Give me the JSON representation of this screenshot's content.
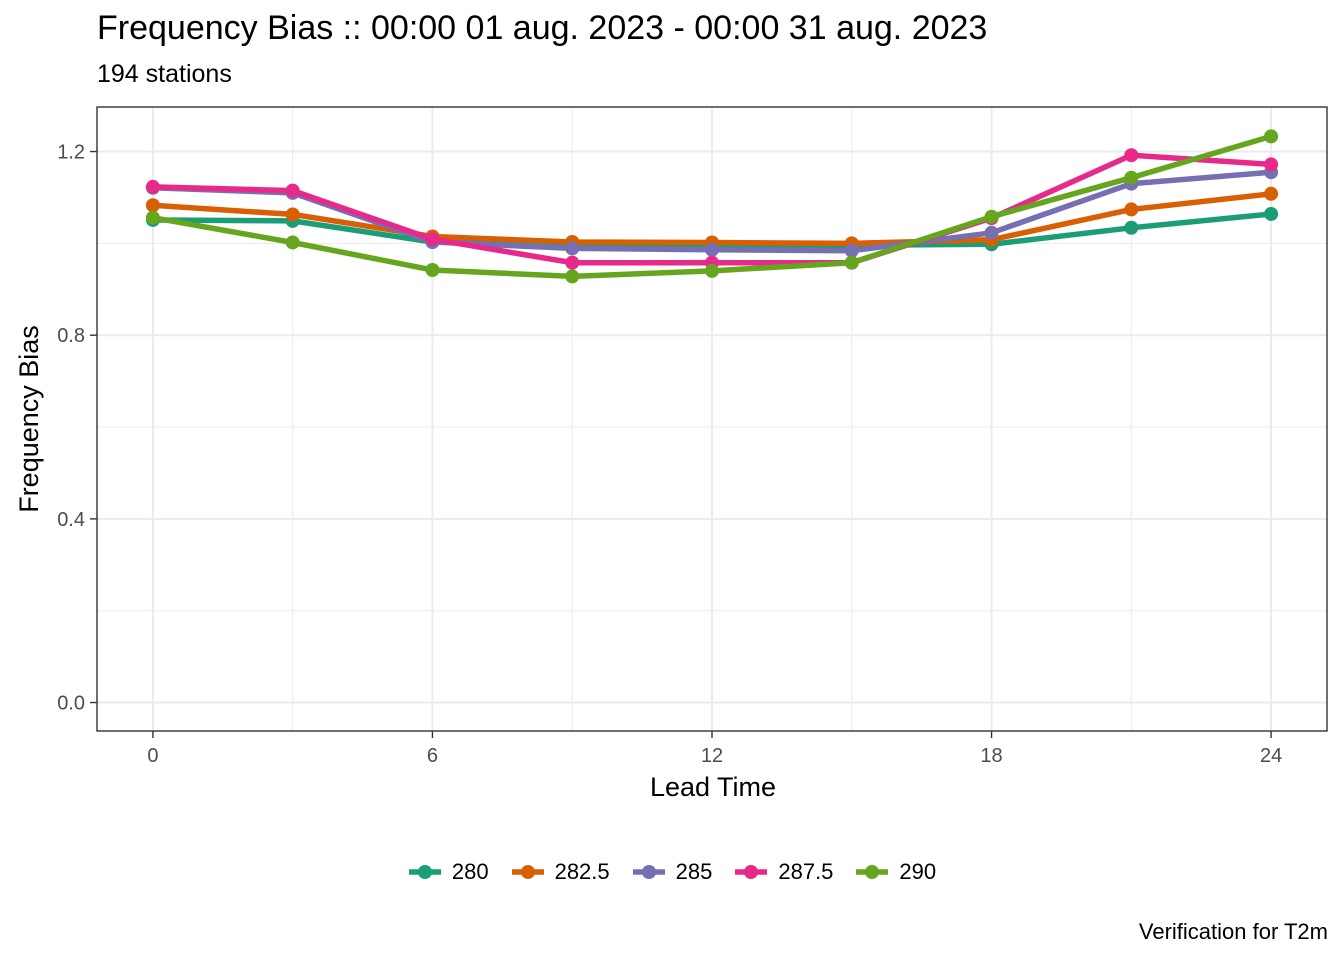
{
  "chart_data": {
    "type": "line",
    "title": "Frequency Bias :: 00:00 01 aug. 2023 - 00:00 31 aug. 2023",
    "subtitle": "194 stations",
    "xlabel": "Lead Time",
    "ylabel": "Frequency Bias",
    "caption": "Verification for T2m",
    "x": [
      0,
      3,
      6,
      9,
      12,
      15,
      18,
      21,
      24
    ],
    "xticks": [
      "0",
      "6",
      "12",
      "18",
      "24"
    ],
    "yticks": [
      "0.0",
      "0.4",
      "0.8",
      "1.2"
    ],
    "xlim": [
      -1.2,
      25.2
    ],
    "ylim": [
      -0.062,
      1.297
    ],
    "grid": true,
    "legend_position": "bottom",
    "series": [
      {
        "name": "280",
        "color": "#1b9e77",
        "values": [
          1.051,
          1.049,
          1.003,
          0.998,
          0.996,
          0.996,
          0.998,
          1.034,
          1.064
        ]
      },
      {
        "name": "282.5",
        "color": "#d95f02",
        "values": [
          1.083,
          1.063,
          1.015,
          1.003,
          1.002,
          1.0,
          1.008,
          1.074,
          1.108
        ]
      },
      {
        "name": "285",
        "color": "#7570b3",
        "values": [
          1.121,
          1.11,
          1.003,
          0.989,
          0.986,
          0.984,
          1.023,
          1.13,
          1.155
        ]
      },
      {
        "name": "287.5",
        "color": "#e7298a",
        "values": [
          1.123,
          1.115,
          1.009,
          0.958,
          0.958,
          0.958,
          1.055,
          1.192,
          1.172
        ]
      },
      {
        "name": "290",
        "color": "#66a61e",
        "values": [
          1.056,
          1.002,
          0.942,
          0.928,
          0.94,
          0.958,
          1.058,
          1.143,
          1.233
        ]
      }
    ]
  }
}
